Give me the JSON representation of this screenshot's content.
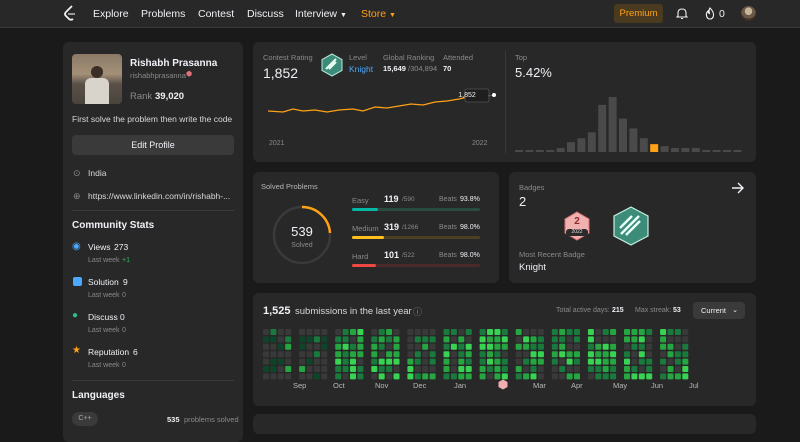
{
  "nav": {
    "items": [
      "Explore",
      "Problems",
      "Contest",
      "Discuss",
      "Interview",
      "Store"
    ],
    "premium": "Premium",
    "coins": "0"
  },
  "profile": {
    "name": "Rishabh Prasanna",
    "username": "rishabhprasanna",
    "rank_label": "Rank",
    "rank": "39,020",
    "bio": "First solve the problem then write the code",
    "edit": "Edit Profile",
    "location": "India",
    "website": "https://www.linkedin.com/in/rishabh-..."
  },
  "community": {
    "title": "Community Stats",
    "stats": [
      {
        "label": "Views",
        "value": "273",
        "sub": "Last week",
        "delta": "+1",
        "color": "#2cbb5d"
      },
      {
        "label": "Solution",
        "value": "9",
        "sub": "Last week",
        "delta": "0",
        "color": "#4aa8ff"
      },
      {
        "label": "Discuss",
        "value": "0",
        "sub": "Last week",
        "delta": "0",
        "color": "#2cbb8d"
      },
      {
        "label": "Reputation",
        "value": "6",
        "sub": "Last week",
        "delta": "0",
        "color": "#ffa116"
      }
    ]
  },
  "languages": {
    "title": "Languages",
    "lang": "C++",
    "count": "535",
    "unit": "problems solved"
  },
  "contest": {
    "rating_label": "Contest Rating",
    "rating": "1,852",
    "level_label": "Level",
    "level": "Knight",
    "global_label": "Global Ranking",
    "global": "15,649",
    "global_total": "/304,894",
    "attended_label": "Attended",
    "attended": "70",
    "year_start": "2021",
    "year_end": "2022",
    "tooltip": "1,852",
    "top_label": "Top",
    "top": "5.42%"
  },
  "solved": {
    "title": "Solved Problems",
    "total": "539",
    "total_label": "Solved",
    "rows": [
      {
        "level": "Easy",
        "count": "119",
        "of": "/590",
        "beats": "Beats",
        "pct": "93.8%",
        "color": "#00b8a3",
        "fill": 0.2
      },
      {
        "level": "Medium",
        "count": "319",
        "of": "/1266",
        "beats": "Beats",
        "pct": "98.0%",
        "color": "#ffc01e",
        "fill": 0.25
      },
      {
        "level": "Hard",
        "count": "101",
        "of": "/522",
        "beats": "Beats",
        "pct": "98.0%",
        "color": "#ef4743",
        "fill": 0.19
      }
    ]
  },
  "badges": {
    "title": "Badges",
    "count": "2",
    "recent_label": "Most Recent Badge",
    "recent": "Knight",
    "badge_year": "2022",
    "badge_num": "2"
  },
  "submissions": {
    "count": "1,525",
    "label": "submissions in the last year",
    "active_label": "Total active days:",
    "active": "215",
    "streak_label": "Max streak:",
    "streak": "53",
    "dropdown": "Current",
    "months": [
      "Sep",
      "Oct",
      "Nov",
      "Dec",
      "Jan",
      "Mar",
      "Apr",
      "May",
      "Jun",
      "Jul"
    ]
  },
  "colors": {
    "accent": "#ffa116",
    "card": "#282828",
    "bg": "#1a1a1a"
  }
}
